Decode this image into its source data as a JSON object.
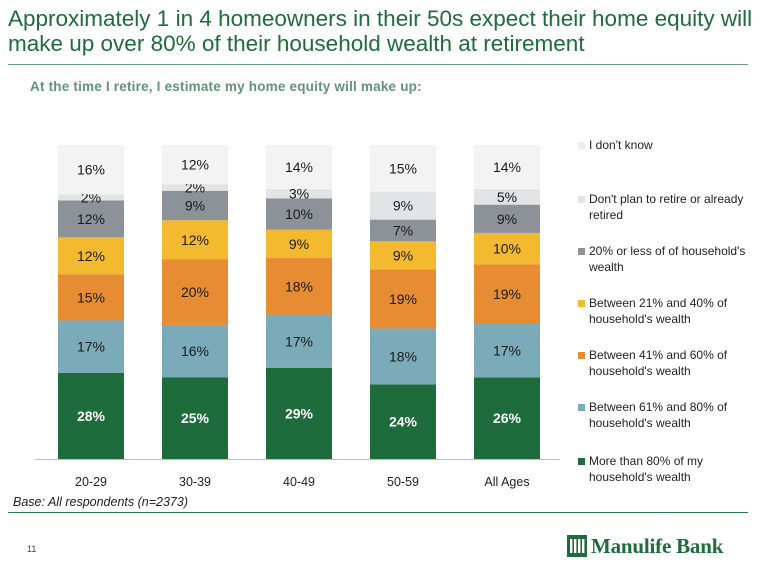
{
  "title": "Approximately 1 in 4 homeowners in their 50s expect their home equity will make up over 80% of their household wealth at retirement",
  "subtitle": "At the time I retire, I estimate my home  equity will make up:",
  "base_note": "Base: All respondents (n=2373)",
  "page_number": "11",
  "logo": {
    "text": "Manulife Bank",
    "icon": "manulife-logo-mark"
  },
  "colors": {
    "title": "#1e6b3c",
    "rule": "#2f7a4e"
  },
  "chart_data": {
    "type": "bar",
    "stacked": true,
    "categories": [
      "20-29",
      "30-39",
      "40-49",
      "50-59",
      "All Ages"
    ],
    "series": [
      {
        "name": "More than 80% of my household's wealth",
        "color": "#1e6b3c",
        "label_color": "#ffffff",
        "values": [
          28,
          25,
          29,
          24,
          26
        ],
        "labels": [
          "28%",
          "25%",
          "29%",
          "24%",
          "26%"
        ]
      },
      {
        "name": "Between 61% and 80% of household's wealth",
        "color": "#7baab8",
        "label_color": "#1a1a1a",
        "values": [
          17,
          16,
          17,
          18,
          17
        ],
        "labels": [
          "17%",
          "16%",
          "17%",
          "18%",
          "17%"
        ]
      },
      {
        "name": "Between 41% and 60% of household's wealth",
        "color": "#e68c33",
        "label_color": "#1a1a1a",
        "values": [
          15,
          20,
          18,
          19,
          19
        ],
        "labels": [
          "15%",
          "20%",
          "18%",
          "19%",
          "19%"
        ]
      },
      {
        "name": "Between 21% and 40% of household's wealth",
        "color": "#f3ba2f",
        "label_color": "#1a1a1a",
        "values": [
          12,
          12,
          9,
          9,
          10
        ],
        "labels": [
          "12%",
          "12%",
          "9%",
          "9%",
          "10%"
        ]
      },
      {
        "name": "20% or less of of household's wealth",
        "color": "#8d9299",
        "label_color": "#1a1a1a",
        "values": [
          12,
          9,
          10,
          7,
          9
        ],
        "labels": [
          "12%",
          "9%",
          "10%",
          "7%",
          "9%"
        ]
      },
      {
        "name": "Don't plan to retire or already retired",
        "color": "#e3e4e6",
        "label_color": "#1a1a1a",
        "values": [
          2,
          2,
          3,
          9,
          5
        ],
        "labels": [
          "2%",
          "2%",
          "3%",
          "9%",
          "5%"
        ]
      },
      {
        "name": "I don't know",
        "color": "#f3f3f4",
        "label_color": "#1a1a1a",
        "values": [
          16,
          12,
          14,
          15,
          14
        ],
        "labels": [
          "16%",
          "12%",
          "14%",
          "15%",
          "14%"
        ]
      }
    ],
    "ylim": [
      0,
      100
    ],
    "grid": false,
    "legend_position": "right",
    "legend_order": "top-to-bottom reversed from stack"
  }
}
